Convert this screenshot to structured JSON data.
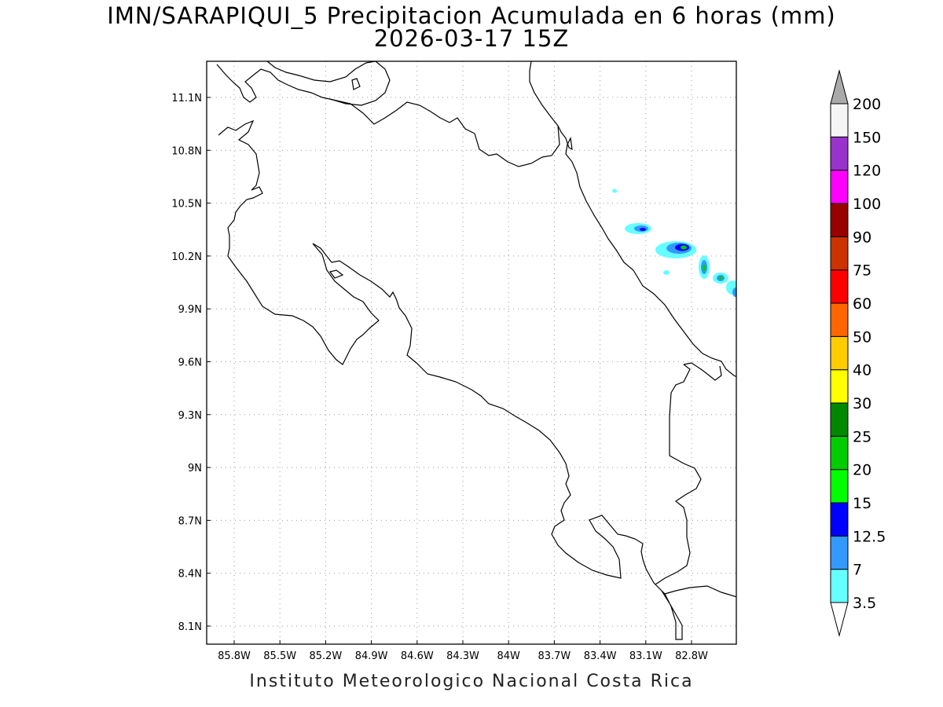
{
  "title_line1": "IMN/SARAPIQUI_5 Precipitacion Acumulada en 6 horas (mm)",
  "title_line2": "2026-03-17 15Z",
  "credit": "Instituto Meteorologico Nacional Costa Rica",
  "map": {
    "lon_range": [
      -86.0,
      -83.0
    ],
    "lat_range": [
      8.0,
      11.2
    ],
    "lon_ticks": [
      {
        "value": -85.8,
        "label": "85.8W"
      },
      {
        "value": -85.5,
        "label": "85.5W"
      },
      {
        "value": -85.2,
        "label": "85.2W"
      },
      {
        "value": -84.9,
        "label": "84.9W"
      },
      {
        "value": -84.6,
        "label": "84.6W"
      },
      {
        "value": -84.3,
        "label": "84.3W"
      },
      {
        "value": -84.0,
        "label": "84W"
      },
      {
        "value": -83.7,
        "label": "83.7W"
      },
      {
        "value": -83.4,
        "label": "83.4W"
      },
      {
        "value": -83.1,
        "label": "83.1W"
      },
      {
        "value": -82.8,
        "label": "82.8W"
      }
    ],
    "lat_ticks": [
      {
        "value": 11.1,
        "label": "11.1N"
      },
      {
        "value": 10.8,
        "label": "10.8N"
      },
      {
        "value": 10.5,
        "label": "10.5N"
      },
      {
        "value": 10.2,
        "label": "10.2N"
      },
      {
        "value": 9.9,
        "label": "9.9N"
      },
      {
        "value": 9.6,
        "label": "9.6N"
      },
      {
        "value": 9.3,
        "label": "9.3N"
      },
      {
        "value": 9.0,
        "label": "9N"
      },
      {
        "value": 8.7,
        "label": "8.7N"
      },
      {
        "value": 8.4,
        "label": "8.4N"
      },
      {
        "value": 8.1,
        "label": "8.1N"
      }
    ],
    "grid": "dotted"
  },
  "colorbar": {
    "levels": [
      {
        "label": "3.5",
        "color": "#66ffff"
      },
      {
        "label": "7",
        "color": "#3399ff"
      },
      {
        "label": "12.5",
        "color": "#0000ff"
      },
      {
        "label": "15",
        "color": "#00ff00"
      },
      {
        "label": "20",
        "color": "#00cc00"
      },
      {
        "label": "25",
        "color": "#008800"
      },
      {
        "label": "30",
        "color": "#ffff00"
      },
      {
        "label": "40",
        "color": "#ffcc00"
      },
      {
        "label": "50",
        "color": "#ff6600"
      },
      {
        "label": "60",
        "color": "#ff0000"
      },
      {
        "label": "75",
        "color": "#cc3300"
      },
      {
        "label": "90",
        "color": "#990000"
      },
      {
        "label": "100",
        "color": "#ff00ff"
      },
      {
        "label": "120",
        "color": "#9933cc"
      },
      {
        "label": "150",
        "color": "#f5f5f5"
      },
      {
        "label": "200",
        "color": "#aaaaaa"
      }
    ],
    "below_color": "#ffffff",
    "above_color": "#aaaaaa"
  }
}
